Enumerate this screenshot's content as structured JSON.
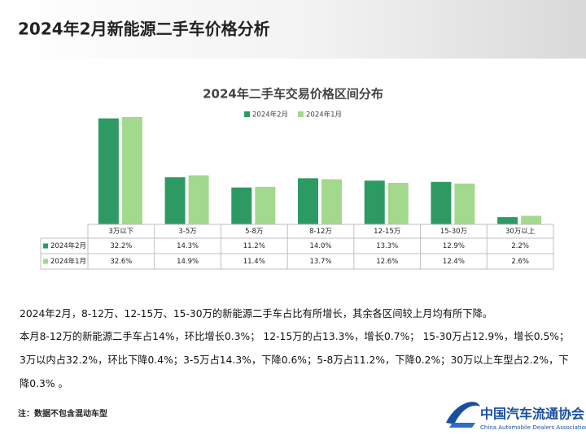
{
  "header": {
    "title": "2024年2月新能源二手车价格分析"
  },
  "chart_data": {
    "type": "bar",
    "title": "2024年二手车交易价格区间分布",
    "categories": [
      "3万以下",
      "3-5万",
      "5-8万",
      "8-12万",
      "12-15万",
      "15-30万",
      "30万以上"
    ],
    "series": [
      {
        "name": "2024年2月",
        "color": "#2e9a63",
        "values": [
          32.2,
          14.3,
          11.2,
          14.0,
          13.3,
          12.9,
          2.2
        ],
        "value_labels": [
          "32.2%",
          "14.3%",
          "11.2%",
          "14.0%",
          "13.3%",
          "12.9%",
          "2.2%"
        ]
      },
      {
        "name": "2024年1月",
        "color": "#a3d98c",
        "values": [
          32.6,
          14.9,
          11.4,
          13.7,
          12.6,
          12.4,
          2.6
        ],
        "value_labels": [
          "32.6%",
          "14.9%",
          "11.4%",
          "13.7%",
          "12.6%",
          "12.4%",
          "2.6%"
        ]
      }
    ],
    "legend": "top"
  },
  "paragraphs": [
    "2024年2月，8-12万、12-15万、15-30万的新能源二手车占比有所增长，其余各区间较上月均有所下降。",
    "本月8-12万的新能源二手车占14%，环比增长0.3%； 12-15万的占13.3%，增长0.7%； 15-30万占12.9%，增长0.5%； 3万以内占32.2%，环比下降0.4%；3-5万占14.3%，下降0.6%；5-8万占11.2%，下降0.2%；30万以上车型占2.2%，下降0.3% 。"
  ],
  "footnote": "注：数据不包含混动车型",
  "logo": {
    "name": "中国汽车流通协会",
    "english": "China Automobile Dealers Association"
  }
}
